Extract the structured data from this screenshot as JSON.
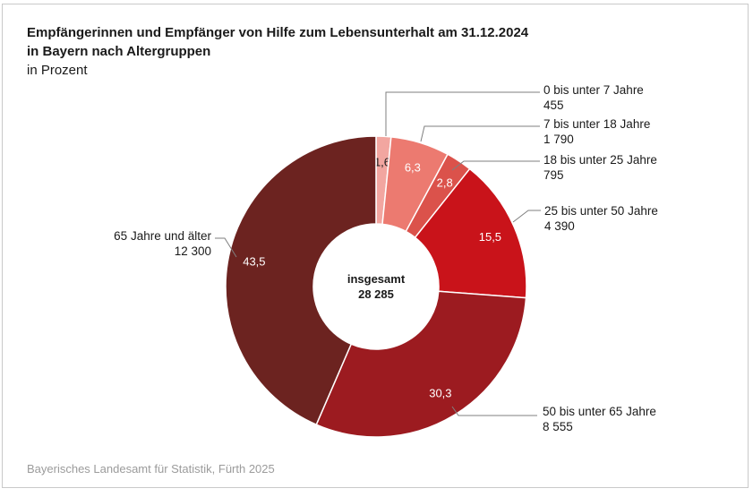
{
  "title": {
    "line1": "Empfängerinnen und Empfänger von Hilfe zum Lebensunterhalt am 31.12.2024",
    "line2": "in Bayern nach Altergruppen",
    "subtitle": "in Prozent"
  },
  "center": {
    "label": "insgesamt",
    "value": "28 285"
  },
  "footer": "Bayerisches Landesamt für Statistik, Fürth 2025",
  "colors": {
    "leader_line": "#7f7f7f",
    "frame_border": "#c9c9c9",
    "footer_text": "#9b9b9b",
    "separator": "#ffffff"
  },
  "chart_data": {
    "type": "pie",
    "variant": "donut",
    "title": "Empfängerinnen und Empfänger von Hilfe zum Lebensunterhalt am 31.12.2024 in Bayern nach Altergruppen",
    "unit": "Prozent",
    "direction": "clockwise",
    "start_angle_deg": 0,
    "total": 28285,
    "total_display": "28 285",
    "total_label": "insgesamt",
    "legend_position": "callouts",
    "segments": [
      {
        "category": "0 bis unter 7 Jahre",
        "count": 455,
        "count_display": "455",
        "percent": 1.6,
        "percent_display": "1,6",
        "color": "#F2A6A0",
        "percent_label_color": "#1a1a1a"
      },
      {
        "category": "7 bis unter 18 Jahre",
        "count": 1790,
        "count_display": "1 790",
        "percent": 6.3,
        "percent_display": "6,3",
        "color": "#EC7A70",
        "percent_label_color": "#ffffff"
      },
      {
        "category": "18 bis unter 25 Jahre",
        "count": 795,
        "count_display": "795",
        "percent": 2.8,
        "percent_display": "2,8",
        "color": "#DB524B",
        "percent_label_color": "#ffffff"
      },
      {
        "category": "25 bis unter 50 Jahre",
        "count": 4390,
        "count_display": "4 390",
        "percent": 15.5,
        "percent_display": "15,5",
        "color": "#C9131A",
        "percent_label_color": "#ffffff"
      },
      {
        "category": "50 bis unter 65 Jahre",
        "count": 8555,
        "count_display": "8 555",
        "percent": 30.3,
        "percent_display": "30,3",
        "color": "#9C1B20",
        "percent_label_color": "#ffffff"
      },
      {
        "category": "65 Jahre und älter",
        "count": 12300,
        "count_display": "12 300",
        "percent": 43.5,
        "percent_display": "43,5",
        "color": "#6C2320",
        "percent_label_color": "#ffffff"
      }
    ]
  }
}
